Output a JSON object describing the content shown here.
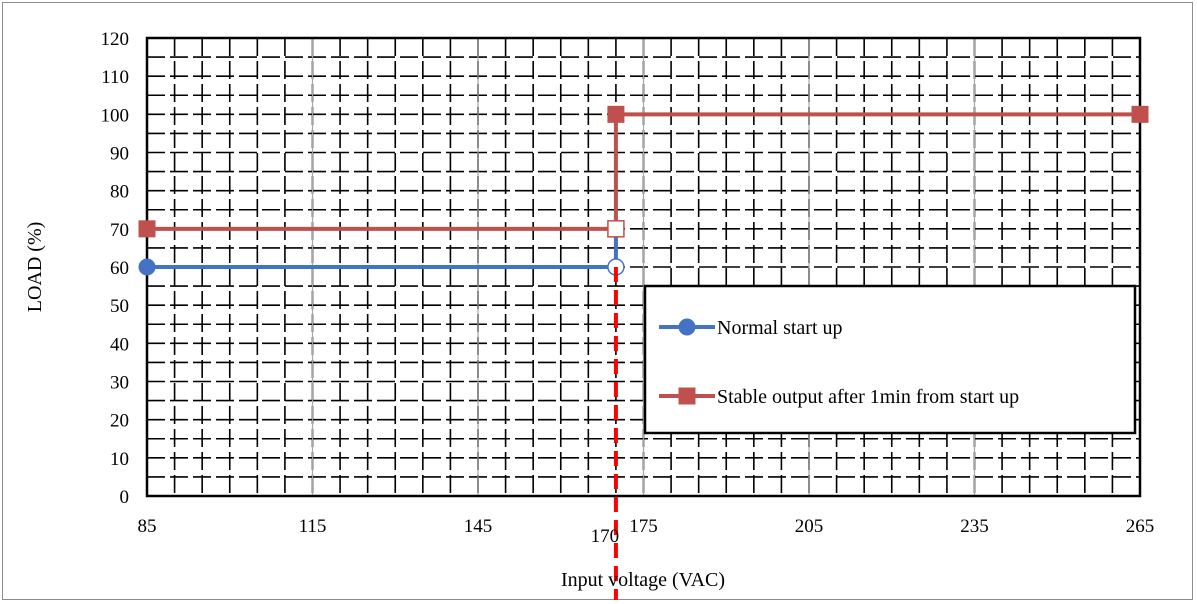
{
  "chart_data": {
    "type": "line",
    "xlabel": "Input voltage (VAC)",
    "ylabel": "LOAD (%)",
    "xlim": [
      85,
      265
    ],
    "ylim": [
      0,
      120
    ],
    "x_ticks": [
      85,
      115,
      145,
      175,
      205,
      235,
      265
    ],
    "y_ticks": [
      0,
      10,
      20,
      30,
      40,
      50,
      60,
      70,
      80,
      90,
      100,
      110,
      120
    ],
    "grid": true,
    "legend_position": "right",
    "series": [
      {
        "name": "Normal start up",
        "color": "#4472c4",
        "marker": "circle",
        "points": [
          [
            85,
            60
          ],
          [
            170,
            60
          ],
          [
            170,
            70
          ]
        ],
        "open_points": [
          [
            170,
            60
          ]
        ]
      },
      {
        "name": "Stable output after 1min from start up",
        "color": "#c0504d",
        "marker": "square",
        "points": [
          [
            85,
            70
          ],
          [
            170,
            70
          ],
          [
            170,
            100
          ],
          [
            265,
            100
          ]
        ],
        "open_points": [
          [
            170,
            70
          ]
        ]
      }
    ],
    "threshold": {
      "x": 170,
      "label": "170",
      "color": "#ff0000",
      "style": "dashed"
    }
  }
}
